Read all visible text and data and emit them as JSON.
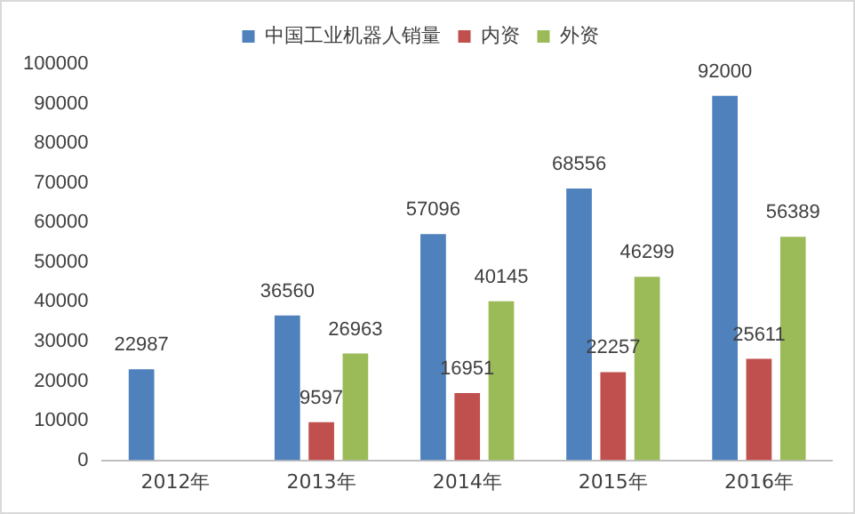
{
  "chart_data": {
    "type": "bar",
    "categories": [
      "2012年",
      "2013年",
      "2014年",
      "2015年",
      "2016年"
    ],
    "series": [
      {
        "name": "中国工业机器人销量",
        "color": "#4f81bd",
        "values": [
          22987,
          36560,
          57096,
          68556,
          92000
        ]
      },
      {
        "name": "内资",
        "color": "#c0504d",
        "values": [
          null,
          9597,
          16951,
          22257,
          25611
        ]
      },
      {
        "name": "外资",
        "color": "#9bbb59",
        "values": [
          null,
          26963,
          40145,
          46299,
          56389
        ]
      }
    ],
    "ylim": [
      0,
      100000
    ],
    "yticks": [
      0,
      10000,
      20000,
      30000,
      40000,
      50000,
      60000,
      70000,
      80000,
      90000,
      100000
    ],
    "grid": false,
    "legend": "top",
    "data_labels": true
  }
}
